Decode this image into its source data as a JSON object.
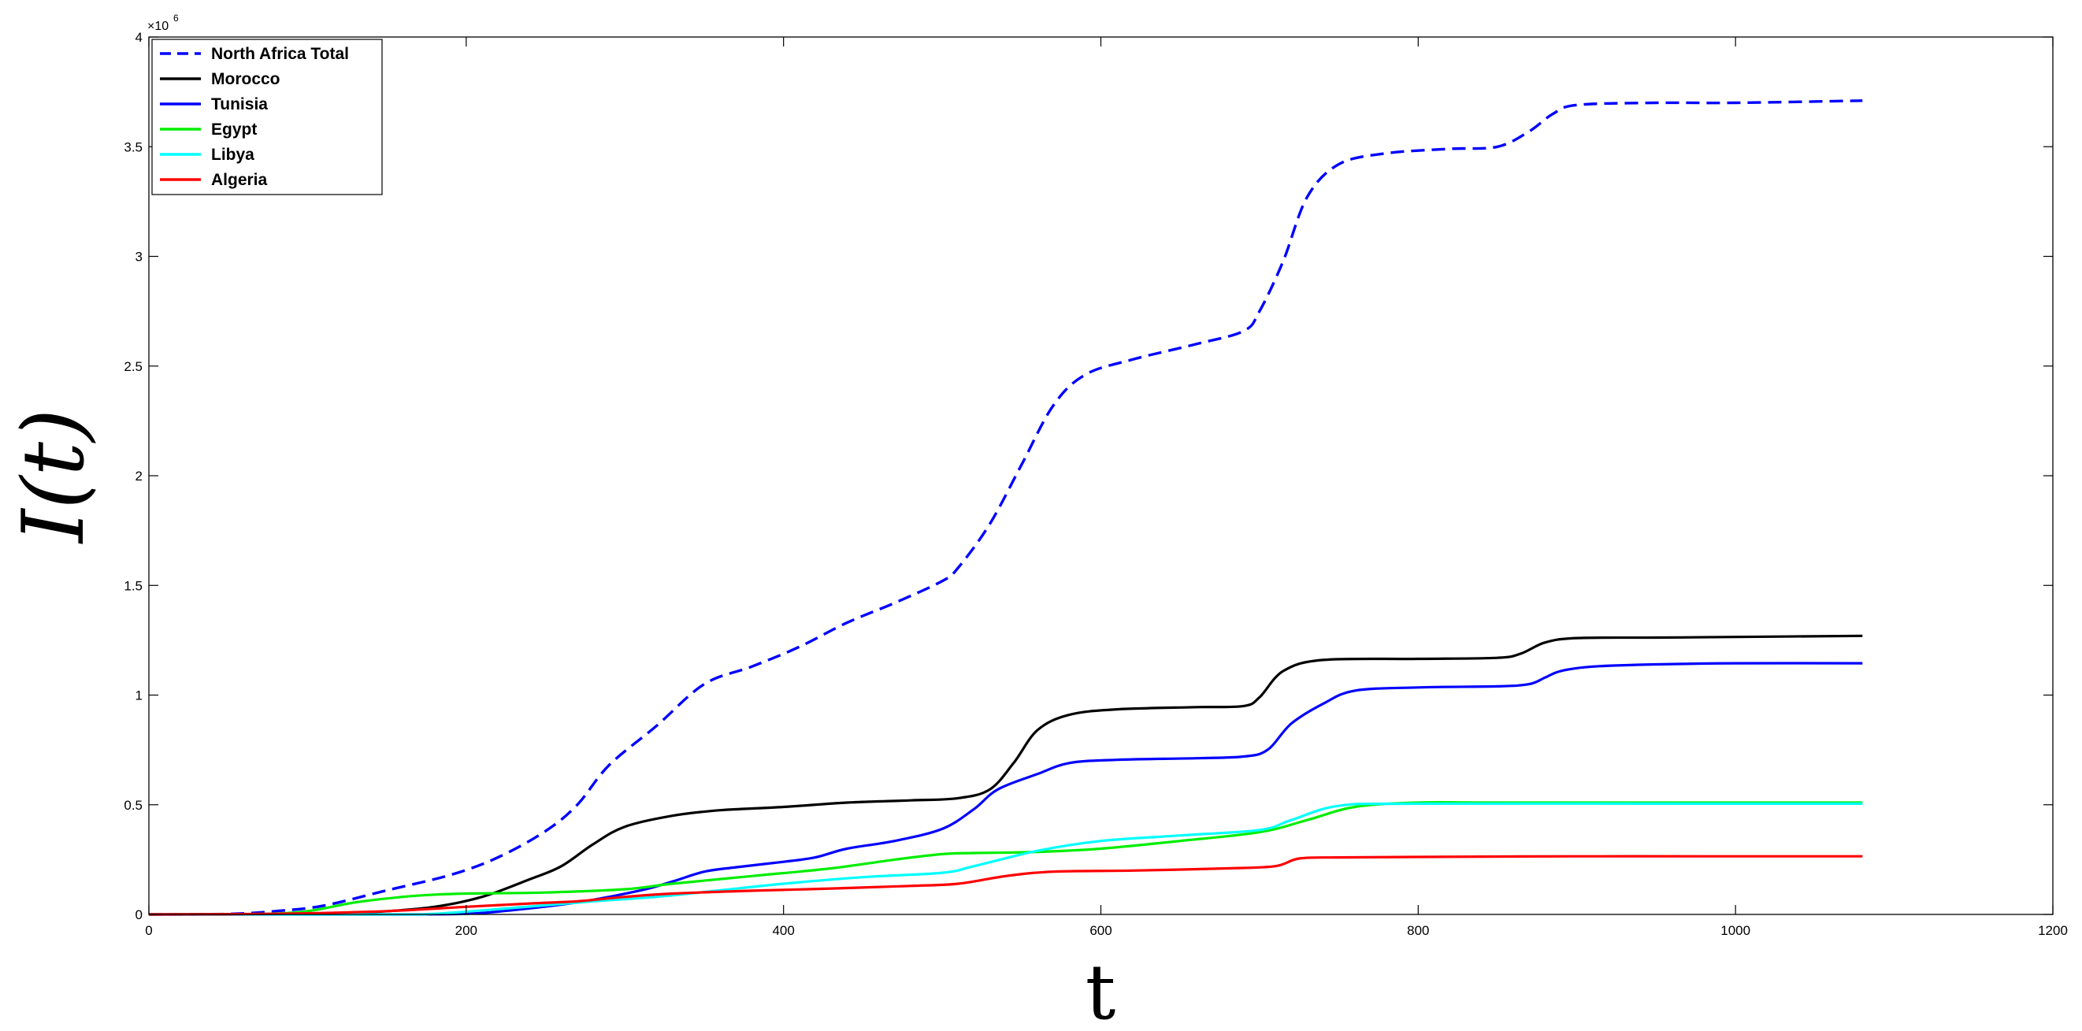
{
  "chart_data": {
    "type": "line",
    "xlabel": "t",
    "ylabel": "I(t)",
    "xlim": [
      0,
      1200
    ],
    "ylim": [
      0,
      4000000
    ],
    "xticks": [
      0,
      200,
      400,
      600,
      800,
      1000,
      1200
    ],
    "yticks": [
      0,
      0.5,
      1,
      1.5,
      2,
      2.5,
      3,
      3.5,
      4
    ],
    "y_exponent_base": "×10",
    "y_exponent_power": "6",
    "legend_position": "top-left",
    "grid": false,
    "series": [
      {
        "name": "North Africa Total",
        "color": "#0000ff",
        "style": "dashed",
        "points": [
          [
            0,
            0
          ],
          [
            50,
            2000
          ],
          [
            80,
            15000
          ],
          [
            110,
            40000
          ],
          [
            150,
            110000
          ],
          [
            190,
            180000
          ],
          [
            220,
            260000
          ],
          [
            250,
            380000
          ],
          [
            270,
            500000
          ],
          [
            290,
            680000
          ],
          [
            320,
            860000
          ],
          [
            350,
            1050000
          ],
          [
            380,
            1130000
          ],
          [
            410,
            1220000
          ],
          [
            440,
            1330000
          ],
          [
            470,
            1420000
          ],
          [
            500,
            1520000
          ],
          [
            510,
            1580000
          ],
          [
            530,
            1780000
          ],
          [
            550,
            2050000
          ],
          [
            570,
            2320000
          ],
          [
            590,
            2460000
          ],
          [
            620,
            2530000
          ],
          [
            660,
            2600000
          ],
          [
            690,
            2660000
          ],
          [
            700,
            2750000
          ],
          [
            715,
            2980000
          ],
          [
            730,
            3270000
          ],
          [
            750,
            3420000
          ],
          [
            780,
            3470000
          ],
          [
            820,
            3490000
          ],
          [
            850,
            3500000
          ],
          [
            870,
            3570000
          ],
          [
            885,
            3650000
          ],
          [
            900,
            3690000
          ],
          [
            950,
            3700000
          ],
          [
            1000,
            3700000
          ],
          [
            1080,
            3710000
          ]
        ]
      },
      {
        "name": "Morocco",
        "color": "#000000",
        "style": "solid",
        "points": [
          [
            0,
            0
          ],
          [
            100,
            3000
          ],
          [
            140,
            10000
          ],
          [
            180,
            35000
          ],
          [
            210,
            80000
          ],
          [
            240,
            160000
          ],
          [
            260,
            220000
          ],
          [
            280,
            320000
          ],
          [
            300,
            400000
          ],
          [
            330,
            450000
          ],
          [
            360,
            475000
          ],
          [
            400,
            490000
          ],
          [
            440,
            510000
          ],
          [
            480,
            520000
          ],
          [
            510,
            530000
          ],
          [
            530,
            570000
          ],
          [
            545,
            690000
          ],
          [
            560,
            840000
          ],
          [
            580,
            910000
          ],
          [
            610,
            935000
          ],
          [
            660,
            945000
          ],
          [
            690,
            950000
          ],
          [
            700,
            990000
          ],
          [
            715,
            1110000
          ],
          [
            740,
            1160000
          ],
          [
            800,
            1165000
          ],
          [
            850,
            1170000
          ],
          [
            865,
            1190000
          ],
          [
            880,
            1240000
          ],
          [
            900,
            1260000
          ],
          [
            950,
            1262000
          ],
          [
            1000,
            1265000
          ],
          [
            1080,
            1270000
          ]
        ]
      },
      {
        "name": "Tunisia",
        "color": "#0000ff",
        "style": "solid",
        "points": [
          [
            0,
            0
          ],
          [
            150,
            0
          ],
          [
            200,
            3000
          ],
          [
            230,
            20000
          ],
          [
            270,
            55000
          ],
          [
            310,
            110000
          ],
          [
            330,
            150000
          ],
          [
            350,
            195000
          ],
          [
            370,
            215000
          ],
          [
            400,
            240000
          ],
          [
            420,
            260000
          ],
          [
            440,
            300000
          ],
          [
            470,
            335000
          ],
          [
            500,
            390000
          ],
          [
            520,
            480000
          ],
          [
            535,
            570000
          ],
          [
            560,
            640000
          ],
          [
            580,
            690000
          ],
          [
            610,
            705000
          ],
          [
            660,
            712000
          ],
          [
            690,
            720000
          ],
          [
            705,
            750000
          ],
          [
            720,
            870000
          ],
          [
            740,
            960000
          ],
          [
            760,
            1020000
          ],
          [
            800,
            1035000
          ],
          [
            850,
            1040000
          ],
          [
            870,
            1050000
          ],
          [
            880,
            1080000
          ],
          [
            890,
            1110000
          ],
          [
            910,
            1130000
          ],
          [
            950,
            1140000
          ],
          [
            1000,
            1145000
          ],
          [
            1080,
            1145000
          ]
        ]
      },
      {
        "name": "Egypt",
        "color": "#00ee00",
        "style": "solid",
        "points": [
          [
            0,
            0
          ],
          [
            70,
            2000
          ],
          [
            100,
            15000
          ],
          [
            130,
            55000
          ],
          [
            160,
            80000
          ],
          [
            180,
            90000
          ],
          [
            200,
            95000
          ],
          [
            250,
            100000
          ],
          [
            300,
            115000
          ],
          [
            330,
            140000
          ],
          [
            380,
            175000
          ],
          [
            430,
            210000
          ],
          [
            470,
            250000
          ],
          [
            500,
            275000
          ],
          [
            520,
            280000
          ],
          [
            560,
            285000
          ],
          [
            600,
            300000
          ],
          [
            650,
            335000
          ],
          [
            700,
            375000
          ],
          [
            730,
            430000
          ],
          [
            760,
            490000
          ],
          [
            800,
            510000
          ],
          [
            850,
            510000
          ],
          [
            1000,
            510000
          ],
          [
            1080,
            510000
          ]
        ]
      },
      {
        "name": "Libya",
        "color": "#00ffff",
        "style": "solid",
        "points": [
          [
            0,
            0
          ],
          [
            150,
            0
          ],
          [
            180,
            3000
          ],
          [
            230,
            30000
          ],
          [
            280,
            60000
          ],
          [
            320,
            80000
          ],
          [
            360,
            110000
          ],
          [
            400,
            140000
          ],
          [
            450,
            170000
          ],
          [
            500,
            190000
          ],
          [
            520,
            220000
          ],
          [
            560,
            290000
          ],
          [
            600,
            335000
          ],
          [
            650,
            360000
          ],
          [
            700,
            385000
          ],
          [
            720,
            430000
          ],
          [
            750,
            495000
          ],
          [
            800,
            505000
          ],
          [
            1000,
            505000
          ],
          [
            1080,
            505000
          ]
        ]
      },
      {
        "name": "Algeria",
        "color": "#ff0000",
        "style": "solid",
        "points": [
          [
            0,
            0
          ],
          [
            80,
            3000
          ],
          [
            150,
            15000
          ],
          [
            200,
            35000
          ],
          [
            240,
            50000
          ],
          [
            270,
            60000
          ],
          [
            300,
            80000
          ],
          [
            330,
            95000
          ],
          [
            380,
            108000
          ],
          [
            430,
            118000
          ],
          [
            480,
            130000
          ],
          [
            510,
            140000
          ],
          [
            540,
            175000
          ],
          [
            570,
            195000
          ],
          [
            620,
            200000
          ],
          [
            680,
            210000
          ],
          [
            710,
            220000
          ],
          [
            725,
            255000
          ],
          [
            750,
            260000
          ],
          [
            800,
            262000
          ],
          [
            900,
            265000
          ],
          [
            1000,
            265000
          ],
          [
            1080,
            265000
          ]
        ]
      }
    ]
  }
}
